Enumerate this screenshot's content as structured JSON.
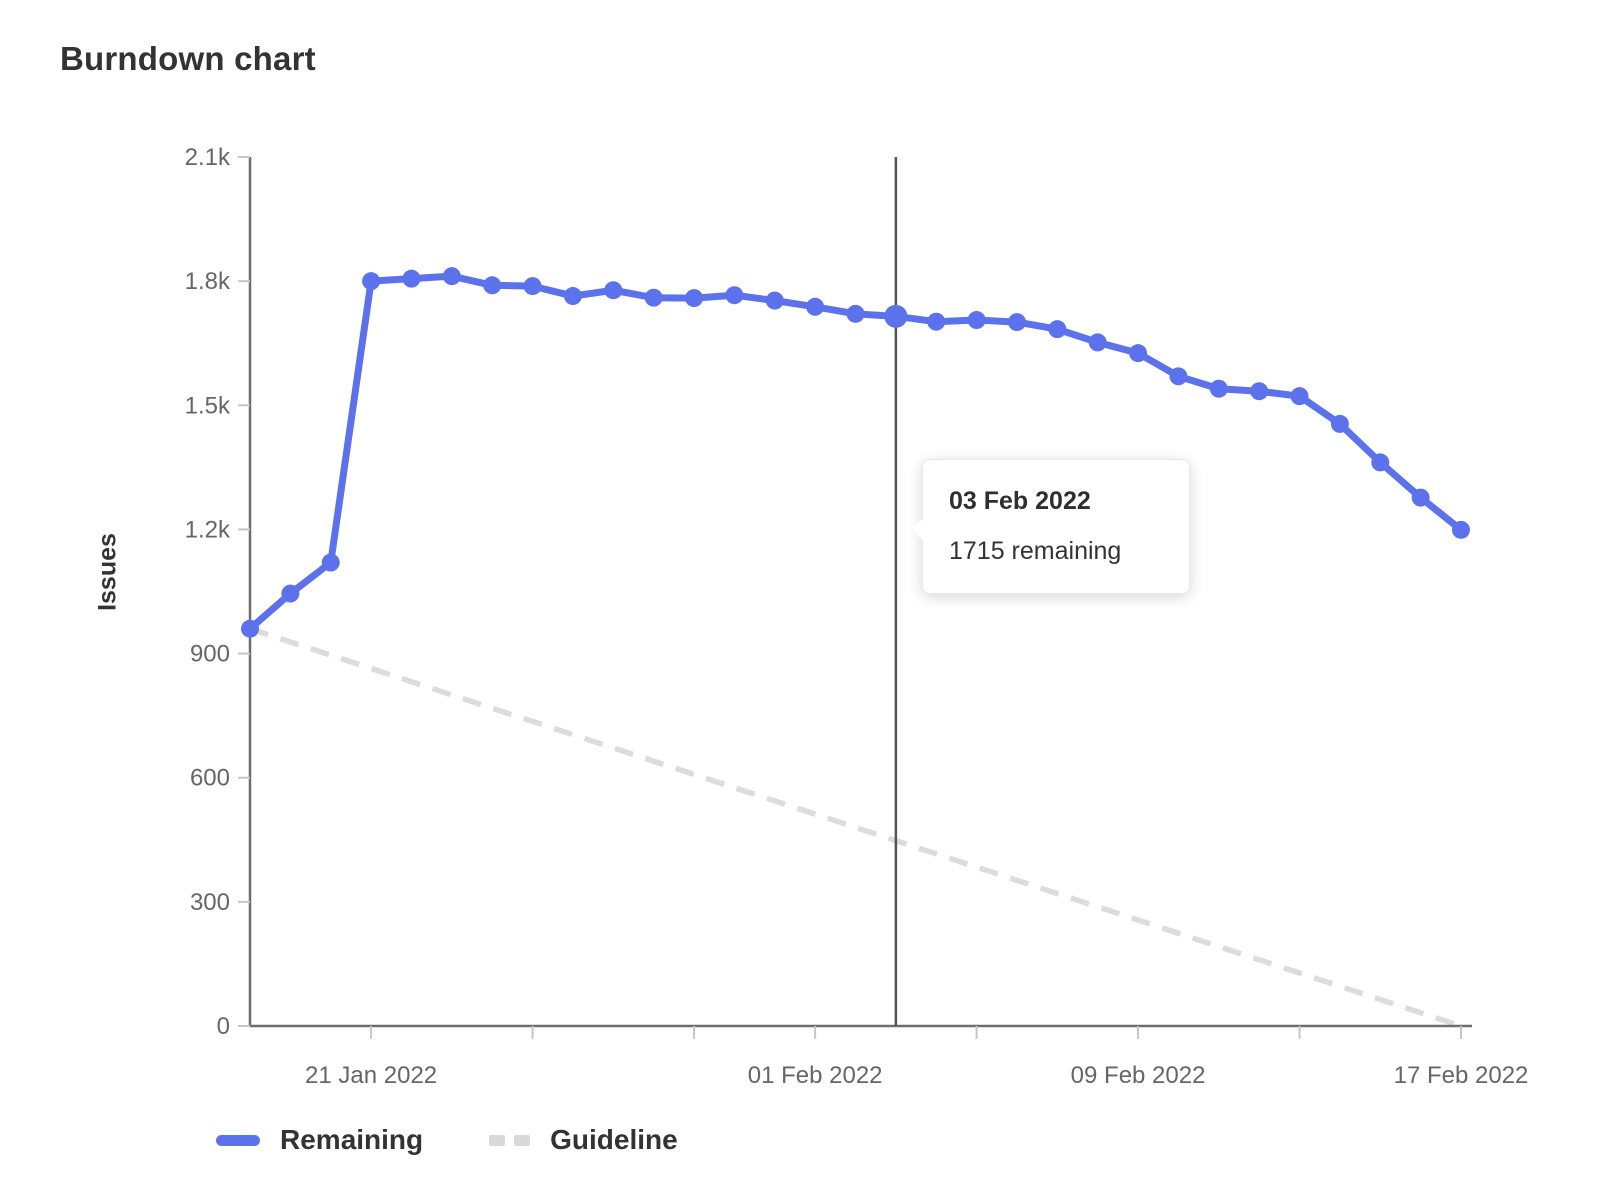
{
  "page_title": "Burndown chart",
  "chart_data": {
    "type": "line",
    "title": "Burndown chart",
    "xlabel": "",
    "ylabel": "Issues",
    "ylim": [
      0,
      2100
    ],
    "grid": false,
    "legend_position": "bottom-left",
    "y_ticks": [
      {
        "value": 0,
        "label": "0"
      },
      {
        "value": 300,
        "label": "300"
      },
      {
        "value": 600,
        "label": "600"
      },
      {
        "value": 900,
        "label": "900"
      },
      {
        "value": 1200,
        "label": "1.2k"
      },
      {
        "value": 1500,
        "label": "1.5k"
      },
      {
        "value": 1800,
        "label": "1.8k"
      },
      {
        "value": 2100,
        "label": "2.1k"
      }
    ],
    "x": [
      "18 Jan 2022",
      "19 Jan 2022",
      "20 Jan 2022",
      "21 Jan 2022",
      "22 Jan 2022",
      "23 Jan 2022",
      "24 Jan 2022",
      "25 Jan 2022",
      "26 Jan 2022",
      "27 Jan 2022",
      "28 Jan 2022",
      "29 Jan 2022",
      "30 Jan 2022",
      "31 Jan 2022",
      "01 Feb 2022",
      "02 Feb 2022",
      "03 Feb 2022",
      "04 Feb 2022",
      "05 Feb 2022",
      "06 Feb 2022",
      "07 Feb 2022",
      "08 Feb 2022",
      "09 Feb 2022",
      "10 Feb 2022",
      "11 Feb 2022",
      "12 Feb 2022",
      "13 Feb 2022",
      "14 Feb 2022",
      "15 Feb 2022",
      "16 Feb 2022",
      "17 Feb 2022"
    ],
    "x_tick_days": [
      3,
      7,
      11,
      14,
      18,
      22,
      26,
      30
    ],
    "x_tick_labels": {
      "3": "21 Jan 2022",
      "14": "01 Feb 2022",
      "22": "09 Feb 2022",
      "30": "17 Feb 2022"
    },
    "series": [
      {
        "name": "Remaining",
        "type": "line",
        "style": "solid",
        "color": "#5c72ec",
        "values": [
          960,
          1045,
          1120,
          1800,
          1806,
          1812,
          1790,
          1788,
          1764,
          1778,
          1760,
          1759,
          1766,
          1753,
          1738,
          1721,
          1715,
          1702,
          1706,
          1701,
          1684,
          1652,
          1626,
          1570,
          1540,
          1534,
          1522,
          1455,
          1362,
          1277,
          1199
        ]
      },
      {
        "name": "Guideline",
        "type": "line",
        "style": "dashed",
        "color": "#dcdcdc",
        "values": [
          960,
          928,
          896,
          864,
          832,
          800,
          768,
          736,
          704,
          672,
          640,
          608,
          576,
          544,
          512,
          480,
          448,
          416,
          384,
          352,
          320,
          288,
          256,
          224,
          192,
          160,
          128,
          96,
          64,
          32,
          0
        ]
      }
    ],
    "hover": {
      "day_index": 16,
      "date": "03 Feb 2022",
      "value_label": "1715 remaining",
      "line_color": "#555555"
    },
    "legend": [
      {
        "label": "Remaining",
        "color": "#5c72ec",
        "style": "solid"
      },
      {
        "label": "Guideline",
        "color": "#d9d9d9",
        "style": "dashed"
      }
    ],
    "axis_colors": {
      "axis_line": "#6e6e6e",
      "tick_mark": "#c6c6c6",
      "tick_text": "#666666"
    }
  }
}
